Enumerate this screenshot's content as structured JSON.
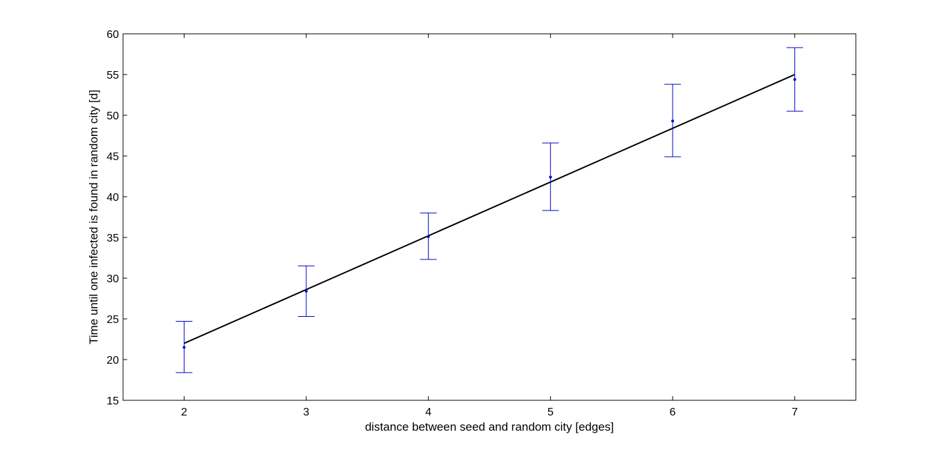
{
  "chart_data": {
    "type": "line",
    "xlabel": "distance between seed and random city [edges]",
    "ylabel": "Time until one infected is found in random city [d]",
    "xlim": [
      1.5,
      7.5
    ],
    "ylim": [
      15,
      60
    ],
    "xticks": [
      2,
      3,
      4,
      5,
      6,
      7
    ],
    "yticks": [
      15,
      20,
      25,
      30,
      35,
      40,
      45,
      50,
      55,
      60
    ],
    "grid": false,
    "series": [
      {
        "kind": "errorbar",
        "color": "#0000cc",
        "x": [
          2,
          3,
          4,
          5,
          6,
          7
        ],
        "y": [
          21.5,
          28.4,
          35.1,
          42.4,
          49.3,
          54.4
        ],
        "lower": [
          18.4,
          25.3,
          32.3,
          38.3,
          44.9,
          50.5
        ],
        "upper": [
          24.7,
          31.5,
          38.0,
          46.6,
          53.8,
          58.3
        ]
      },
      {
        "kind": "line",
        "color": "#000000",
        "x": [
          2,
          7
        ],
        "y": [
          22.0,
          55.0
        ]
      }
    ]
  }
}
